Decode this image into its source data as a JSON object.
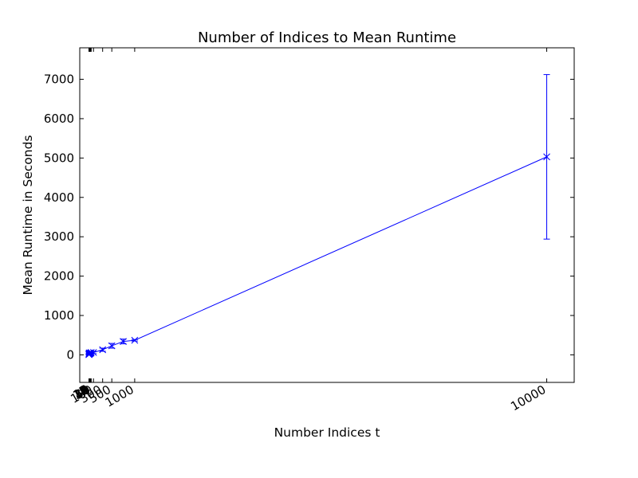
{
  "chart_data": {
    "type": "line",
    "title": "Number of Indices to Mean Runtime",
    "xlabel": "Number Indices t",
    "ylabel": "Mean Runtime in Seconds",
    "xlim": [
      -200,
      10600
    ],
    "ylim": [
      -700,
      7800
    ],
    "x_ticks": [
      1,
      2,
      3,
      4,
      5,
      6,
      7,
      8,
      9,
      10,
      20,
      30,
      40,
      50,
      100,
      300,
      500,
      1000,
      10000
    ],
    "x_tick_labels": [
      "1",
      "2",
      "3",
      "4",
      "5",
      "6",
      "7",
      "8",
      "9",
      "10",
      "20",
      "30",
      "40",
      "50",
      "100",
      "300",
      "500",
      "1000",
      "10000"
    ],
    "y_ticks": [
      0,
      1000,
      2000,
      3000,
      4000,
      5000,
      6000,
      7000
    ],
    "y_tick_labels": [
      "0",
      "1000",
      "2000",
      "3000",
      "4000",
      "5000",
      "6000",
      "7000"
    ],
    "grid": false,
    "marker": "x",
    "series": [
      {
        "color": "#0000ff",
        "x": [
          1,
          2,
          3,
          4,
          5,
          6,
          7,
          8,
          9,
          10,
          20,
          30,
          40,
          50,
          100,
          300,
          500,
          750,
          1000,
          10000
        ],
        "y": [
          5,
          10,
          15,
          20,
          25,
          30,
          35,
          40,
          45,
          50,
          30,
          40,
          45,
          60,
          60,
          130,
          230,
          340,
          370,
          5030
        ],
        "yerr": [
          5,
          8,
          10,
          12,
          15,
          18,
          20,
          22,
          25,
          28,
          15,
          20,
          25,
          30,
          30,
          40,
          60,
          60,
          20,
          2090
        ]
      }
    ]
  }
}
